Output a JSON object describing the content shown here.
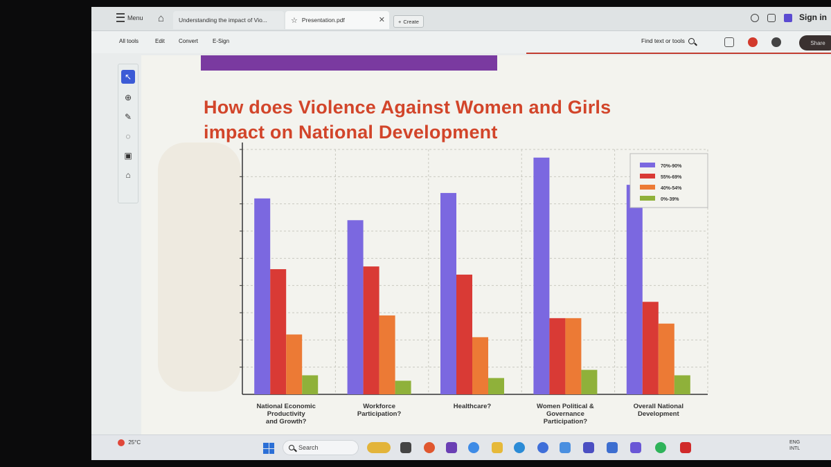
{
  "tabbar": {
    "menu_label": "Menu",
    "tabs": [
      {
        "label": "Understanding the impact of Vio..."
      },
      {
        "label": "Presentation.pdf"
      }
    ],
    "create_label": "Create",
    "signin_label": "Sign in"
  },
  "toolbar": {
    "links": [
      "All tools",
      "Edit",
      "Convert",
      "E-Sign"
    ],
    "find_label": "Find text or tools",
    "share_label": "Share"
  },
  "slide": {
    "title_line1": "How does Violence Against Women and Girls",
    "title_line2": "impact on National Development"
  },
  "chart_data": {
    "type": "bar",
    "categories": [
      [
        "National Economic",
        "Productivity",
        "and Growth?"
      ],
      [
        "Workforce",
        "Participation?"
      ],
      [
        "Healthcare?"
      ],
      [
        "Women Political &",
        "Governance",
        "Participation?"
      ],
      [
        "Overall National",
        "Development"
      ]
    ],
    "series": [
      {
        "name": "70%-90%",
        "color": "#7b68e0",
        "values": [
          72,
          64,
          74,
          87,
          77
        ]
      },
      {
        "name": "55%-69%",
        "color": "#d93a35",
        "values": [
          46,
          47,
          44,
          28,
          34
        ]
      },
      {
        "name": "40%-54%",
        "color": "#ec7a35",
        "values": [
          22,
          29,
          21,
          28,
          26
        ]
      },
      {
        "name": "0%-39%",
        "color": "#8fb13a",
        "values": [
          7,
          5,
          6,
          9,
          7
        ]
      }
    ],
    "ylim": [
      0,
      90
    ],
    "grid": true,
    "legend_position": "top-right"
  },
  "taskbar": {
    "temperature": "25°C",
    "search_placeholder": "Search",
    "lang_line1": "ENG",
    "lang_line2": "INTL"
  }
}
